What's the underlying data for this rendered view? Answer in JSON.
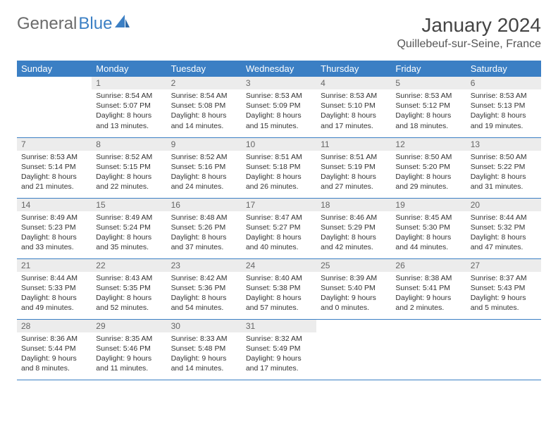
{
  "logo": {
    "part1": "General",
    "part2": "Blue"
  },
  "title": "January 2024",
  "subtitle": "Quillebeuf-sur-Seine, France",
  "colors": {
    "header_bg": "#3b7fc4",
    "header_text": "#ffffff",
    "daynum_bg": "#ececec",
    "daynum_text": "#666666",
    "body_text": "#333333",
    "rule": "#3b7fc4",
    "logo_gray": "#6b6b6b",
    "logo_blue": "#3b7fc4"
  },
  "weekdays": [
    "Sunday",
    "Monday",
    "Tuesday",
    "Wednesday",
    "Thursday",
    "Friday",
    "Saturday"
  ],
  "weeks": [
    [
      null,
      {
        "n": "1",
        "sr": "Sunrise: 8:54 AM",
        "ss": "Sunset: 5:07 PM",
        "d1": "Daylight: 8 hours",
        "d2": "and 13 minutes."
      },
      {
        "n": "2",
        "sr": "Sunrise: 8:54 AM",
        "ss": "Sunset: 5:08 PM",
        "d1": "Daylight: 8 hours",
        "d2": "and 14 minutes."
      },
      {
        "n": "3",
        "sr": "Sunrise: 8:53 AM",
        "ss": "Sunset: 5:09 PM",
        "d1": "Daylight: 8 hours",
        "d2": "and 15 minutes."
      },
      {
        "n": "4",
        "sr": "Sunrise: 8:53 AM",
        "ss": "Sunset: 5:10 PM",
        "d1": "Daylight: 8 hours",
        "d2": "and 17 minutes."
      },
      {
        "n": "5",
        "sr": "Sunrise: 8:53 AM",
        "ss": "Sunset: 5:12 PM",
        "d1": "Daylight: 8 hours",
        "d2": "and 18 minutes."
      },
      {
        "n": "6",
        "sr": "Sunrise: 8:53 AM",
        "ss": "Sunset: 5:13 PM",
        "d1": "Daylight: 8 hours",
        "d2": "and 19 minutes."
      }
    ],
    [
      {
        "n": "7",
        "sr": "Sunrise: 8:53 AM",
        "ss": "Sunset: 5:14 PM",
        "d1": "Daylight: 8 hours",
        "d2": "and 21 minutes."
      },
      {
        "n": "8",
        "sr": "Sunrise: 8:52 AM",
        "ss": "Sunset: 5:15 PM",
        "d1": "Daylight: 8 hours",
        "d2": "and 22 minutes."
      },
      {
        "n": "9",
        "sr": "Sunrise: 8:52 AM",
        "ss": "Sunset: 5:16 PM",
        "d1": "Daylight: 8 hours",
        "d2": "and 24 minutes."
      },
      {
        "n": "10",
        "sr": "Sunrise: 8:51 AM",
        "ss": "Sunset: 5:18 PM",
        "d1": "Daylight: 8 hours",
        "d2": "and 26 minutes."
      },
      {
        "n": "11",
        "sr": "Sunrise: 8:51 AM",
        "ss": "Sunset: 5:19 PM",
        "d1": "Daylight: 8 hours",
        "d2": "and 27 minutes."
      },
      {
        "n": "12",
        "sr": "Sunrise: 8:50 AM",
        "ss": "Sunset: 5:20 PM",
        "d1": "Daylight: 8 hours",
        "d2": "and 29 minutes."
      },
      {
        "n": "13",
        "sr": "Sunrise: 8:50 AM",
        "ss": "Sunset: 5:22 PM",
        "d1": "Daylight: 8 hours",
        "d2": "and 31 minutes."
      }
    ],
    [
      {
        "n": "14",
        "sr": "Sunrise: 8:49 AM",
        "ss": "Sunset: 5:23 PM",
        "d1": "Daylight: 8 hours",
        "d2": "and 33 minutes."
      },
      {
        "n": "15",
        "sr": "Sunrise: 8:49 AM",
        "ss": "Sunset: 5:24 PM",
        "d1": "Daylight: 8 hours",
        "d2": "and 35 minutes."
      },
      {
        "n": "16",
        "sr": "Sunrise: 8:48 AM",
        "ss": "Sunset: 5:26 PM",
        "d1": "Daylight: 8 hours",
        "d2": "and 37 minutes."
      },
      {
        "n": "17",
        "sr": "Sunrise: 8:47 AM",
        "ss": "Sunset: 5:27 PM",
        "d1": "Daylight: 8 hours",
        "d2": "and 40 minutes."
      },
      {
        "n": "18",
        "sr": "Sunrise: 8:46 AM",
        "ss": "Sunset: 5:29 PM",
        "d1": "Daylight: 8 hours",
        "d2": "and 42 minutes."
      },
      {
        "n": "19",
        "sr": "Sunrise: 8:45 AM",
        "ss": "Sunset: 5:30 PM",
        "d1": "Daylight: 8 hours",
        "d2": "and 44 minutes."
      },
      {
        "n": "20",
        "sr": "Sunrise: 8:44 AM",
        "ss": "Sunset: 5:32 PM",
        "d1": "Daylight: 8 hours",
        "d2": "and 47 minutes."
      }
    ],
    [
      {
        "n": "21",
        "sr": "Sunrise: 8:44 AM",
        "ss": "Sunset: 5:33 PM",
        "d1": "Daylight: 8 hours",
        "d2": "and 49 minutes."
      },
      {
        "n": "22",
        "sr": "Sunrise: 8:43 AM",
        "ss": "Sunset: 5:35 PM",
        "d1": "Daylight: 8 hours",
        "d2": "and 52 minutes."
      },
      {
        "n": "23",
        "sr": "Sunrise: 8:42 AM",
        "ss": "Sunset: 5:36 PM",
        "d1": "Daylight: 8 hours",
        "d2": "and 54 minutes."
      },
      {
        "n": "24",
        "sr": "Sunrise: 8:40 AM",
        "ss": "Sunset: 5:38 PM",
        "d1": "Daylight: 8 hours",
        "d2": "and 57 minutes."
      },
      {
        "n": "25",
        "sr": "Sunrise: 8:39 AM",
        "ss": "Sunset: 5:40 PM",
        "d1": "Daylight: 9 hours",
        "d2": "and 0 minutes."
      },
      {
        "n": "26",
        "sr": "Sunrise: 8:38 AM",
        "ss": "Sunset: 5:41 PM",
        "d1": "Daylight: 9 hours",
        "d2": "and 2 minutes."
      },
      {
        "n": "27",
        "sr": "Sunrise: 8:37 AM",
        "ss": "Sunset: 5:43 PM",
        "d1": "Daylight: 9 hours",
        "d2": "and 5 minutes."
      }
    ],
    [
      {
        "n": "28",
        "sr": "Sunrise: 8:36 AM",
        "ss": "Sunset: 5:44 PM",
        "d1": "Daylight: 9 hours",
        "d2": "and 8 minutes."
      },
      {
        "n": "29",
        "sr": "Sunrise: 8:35 AM",
        "ss": "Sunset: 5:46 PM",
        "d1": "Daylight: 9 hours",
        "d2": "and 11 minutes."
      },
      {
        "n": "30",
        "sr": "Sunrise: 8:33 AM",
        "ss": "Sunset: 5:48 PM",
        "d1": "Daylight: 9 hours",
        "d2": "and 14 minutes."
      },
      {
        "n": "31",
        "sr": "Sunrise: 8:32 AM",
        "ss": "Sunset: 5:49 PM",
        "d1": "Daylight: 9 hours",
        "d2": "and 17 minutes."
      },
      null,
      null,
      null
    ]
  ]
}
